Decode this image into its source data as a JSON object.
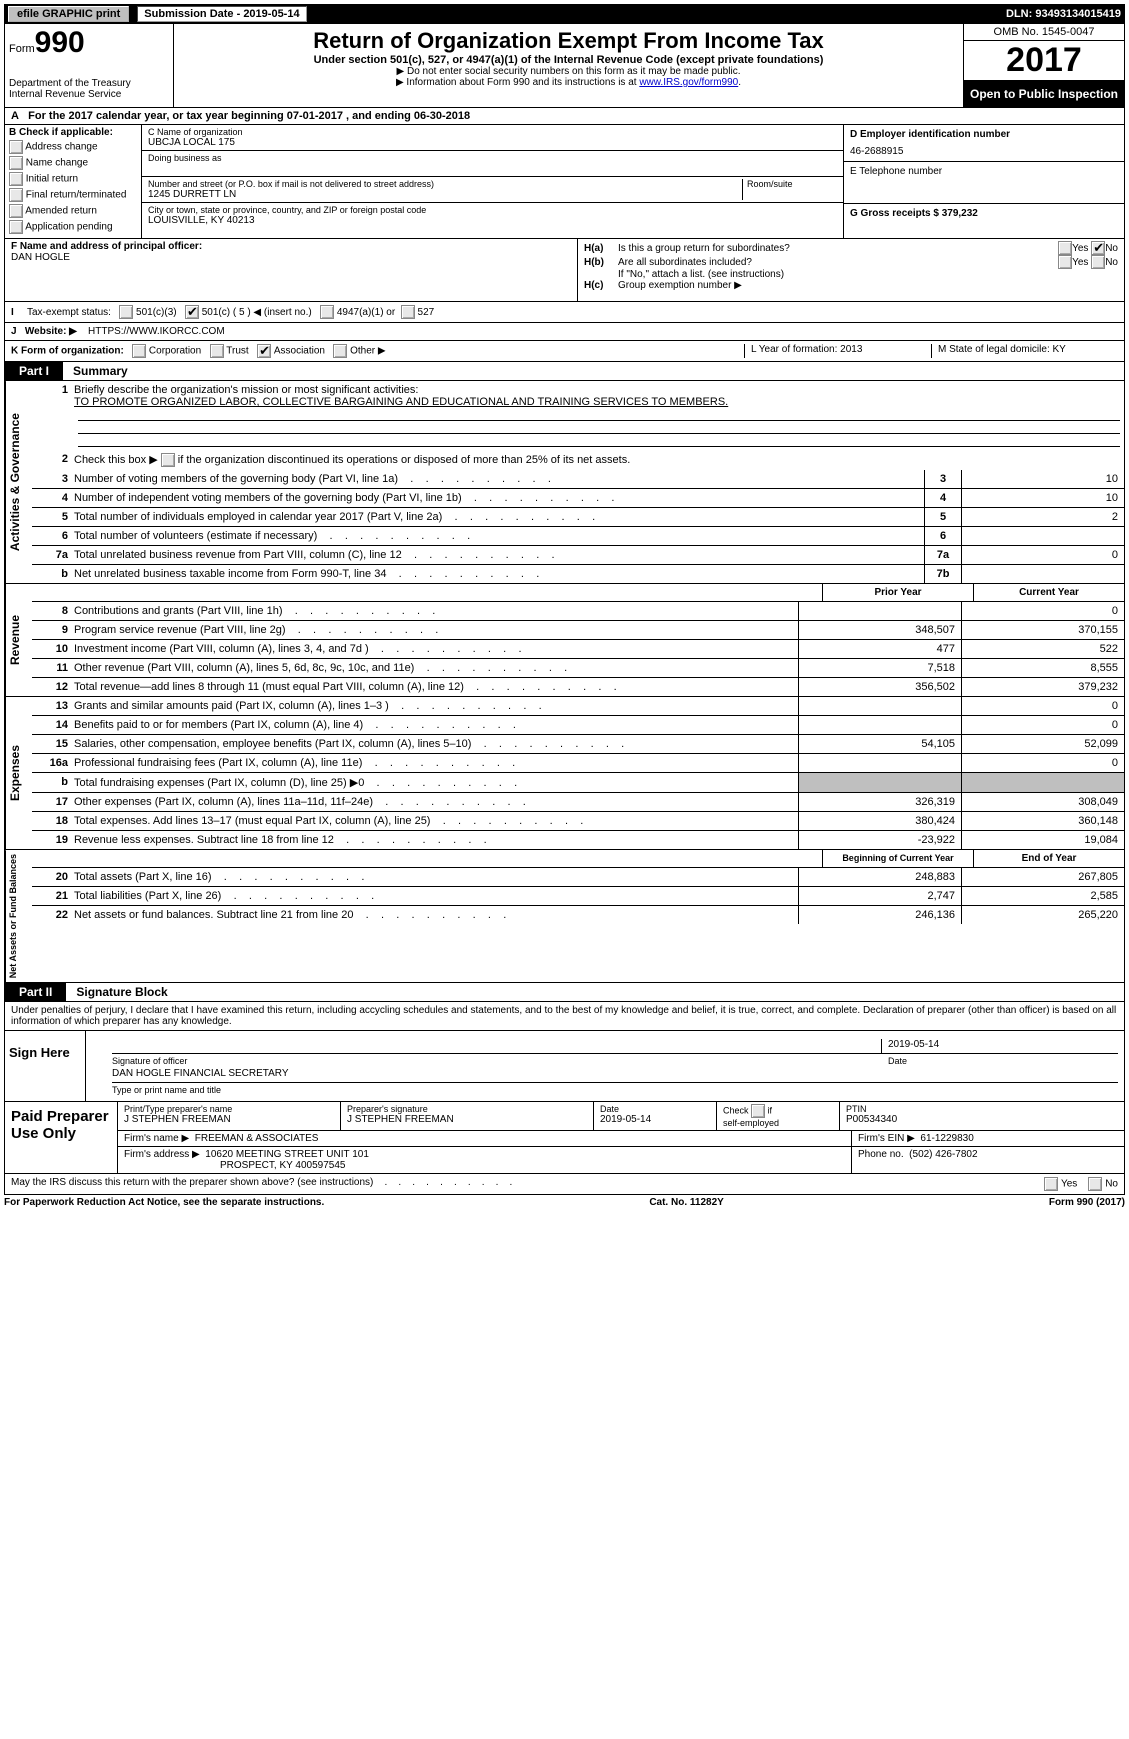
{
  "topbar": {
    "efile": "efile GRAPHIC print",
    "subm_label": "Submission Date - 2019-05-14",
    "dln": "DLN: 93493134015419"
  },
  "header": {
    "form_prefix": "Form",
    "form_num": "990",
    "dept": "Department of the Treasury",
    "irs": "Internal Revenue Service",
    "title": "Return of Organization Exempt From Income Tax",
    "subtitle": "Under section 501(c), 527, or 4947(a)(1) of the Internal Revenue Code (except private foundations)",
    "note1": "▶ Do not enter social security numbers on this form as it may be made public.",
    "note2_prefix": "▶ Information about Form 990 and its instructions is at ",
    "note2_link": "www.IRS.gov/form990",
    "omb": "OMB No. 1545-0047",
    "year": "2017",
    "inspection": "Open to Public Inspection"
  },
  "row_a": {
    "label_a": "A",
    "text": "For the 2017 calendar year, or tax year beginning 07-01-2017        , and ending 06-30-2018"
  },
  "box_b": {
    "title": "B  Check if applicable:",
    "items": [
      "Address change",
      "Name change",
      "Initial return",
      "Final return/terminated",
      "Amended return",
      "Application pending"
    ]
  },
  "box_c": {
    "name_label": "C Name of organization",
    "name": "UBCJA LOCAL 175",
    "dba_label": "Doing business as",
    "street_label": "Number and street (or P.O. box if mail is not delivered to street address)",
    "room_label": "Room/suite",
    "street": "1245 DURRETT LN",
    "city_label": "City or town, state or province, country, and ZIP or foreign postal code",
    "city": "LOUISVILLE, KY   40213"
  },
  "box_d": {
    "label": "D Employer identification number",
    "value": "46-2688915",
    "e_label": "E Telephone number",
    "g_label": "G Gross receipts $ 379,232"
  },
  "box_f": {
    "label": "F Name and address of principal officer:",
    "value": "DAN HOGLE"
  },
  "box_h": {
    "h_a_label": "H(a)",
    "h_a_text": "Is this a group return for subordinates?",
    "h_b_label": "H(b)",
    "h_b_text": "Are all subordinates included?",
    "h_b_note": "If \"No,\" attach a list. (see instructions)",
    "h_c_label": "H(c)",
    "h_c_text": "Group exemption number ▶",
    "yes": "Yes",
    "no": "No"
  },
  "row_i": {
    "label": "I",
    "text": "Tax-exempt status:",
    "opts": [
      "501(c)(3)",
      "501(c) ( 5 ) ◀ (insert no.)",
      "4947(a)(1) or",
      "527"
    ]
  },
  "row_j": {
    "label": "J",
    "text": "Website: ▶",
    "value": "HTTPS://WWW.IKORCC.COM"
  },
  "row_k": {
    "label": "K Form of organization:",
    "opts": [
      "Corporation",
      "Trust",
      "Association",
      "Other ▶"
    ]
  },
  "row_lm": {
    "l": "L Year of formation: 2013",
    "m": "M State of legal domicile: KY"
  },
  "part1": {
    "tag": "Part I",
    "title": "Summary",
    "q1_label": "1",
    "q1": "Briefly describe the organization's mission or most significant activities:",
    "q1_val": "TO PROMOTE ORGANIZED LABOR, COLLECTIVE BARGAINING AND EDUCATIONAL AND TRAINING SERVICES TO MEMBERS.",
    "q2_label": "2",
    "q2": "Check this box ▶        if the organization discontinued its operations or disposed of more than 25% of its net assets.",
    "rows_ag": [
      {
        "n": "3",
        "d": "Number of voting members of the governing body (Part VI, line 1a)",
        "k": "3",
        "v": "10"
      },
      {
        "n": "4",
        "d": "Number of independent voting members of the governing body (Part VI, line 1b)",
        "k": "4",
        "v": "10"
      },
      {
        "n": "5",
        "d": "Total number of individuals employed in calendar year 2017 (Part V, line 2a)",
        "k": "5",
        "v": "2"
      },
      {
        "n": "6",
        "d": "Total number of volunteers (estimate if necessary)",
        "k": "6",
        "v": ""
      },
      {
        "n": "7a",
        "d": "Total unrelated business revenue from Part VIII, column (C), line 12",
        "k": "7a",
        "v": "0"
      },
      {
        "n": "b",
        "d": "Net unrelated business taxable income from Form 990-T, line 34",
        "k": "7b",
        "v": ""
      }
    ],
    "hdr_prior": "Prior Year",
    "hdr_curr": "Current Year",
    "rev_rows": [
      {
        "n": "8",
        "d": "Contributions and grants (Part VIII, line 1h)",
        "p": "",
        "c": "0"
      },
      {
        "n": "9",
        "d": "Program service revenue (Part VIII, line 2g)",
        "p": "348,507",
        "c": "370,155"
      },
      {
        "n": "10",
        "d": "Investment income (Part VIII, column (A), lines 3, 4, and 7d )",
        "p": "477",
        "c": "522"
      },
      {
        "n": "11",
        "d": "Other revenue (Part VIII, column (A), lines 5, 6d, 8c, 9c, 10c, and 11e)",
        "p": "7,518",
        "c": "8,555"
      },
      {
        "n": "12",
        "d": "Total revenue—add lines 8 through 11 (must equal Part VIII, column (A), line 12)",
        "p": "356,502",
        "c": "379,232"
      }
    ],
    "exp_rows": [
      {
        "n": "13",
        "d": "Grants and similar amounts paid (Part IX, column (A), lines 1–3 )",
        "p": "",
        "c": "0"
      },
      {
        "n": "14",
        "d": "Benefits paid to or for members (Part IX, column (A), line 4)",
        "p": "",
        "c": "0"
      },
      {
        "n": "15",
        "d": "Salaries, other compensation, employee benefits (Part IX, column (A), lines 5–10)",
        "p": "54,105",
        "c": "52,099"
      },
      {
        "n": "16a",
        "d": "Professional fundraising fees (Part IX, column (A), line 11e)",
        "p": "",
        "c": "0"
      },
      {
        "n": "b",
        "d": "Total fundraising expenses (Part IX, column (D), line 25) ▶0",
        "p": "SHADE",
        "c": "SHADE"
      },
      {
        "n": "17",
        "d": "Other expenses (Part IX, column (A), lines 11a–11d, 11f–24e)",
        "p": "326,319",
        "c": "308,049"
      },
      {
        "n": "18",
        "d": "Total expenses. Add lines 13–17 (must equal Part IX, column (A), line 25)",
        "p": "380,424",
        "c": "360,148"
      },
      {
        "n": "19",
        "d": "Revenue less expenses. Subtract line 18 from line 12",
        "p": "-23,922",
        "c": "19,084"
      }
    ],
    "hdr_beg": "Beginning of Current Year",
    "hdr_end": "End of Year",
    "na_rows": [
      {
        "n": "20",
        "d": "Total assets (Part X, line 16)",
        "p": "248,883",
        "c": "267,805"
      },
      {
        "n": "21",
        "d": "Total liabilities (Part X, line 26)",
        "p": "2,747",
        "c": "2,585"
      },
      {
        "n": "22",
        "d": "Net assets or fund balances. Subtract line 21 from line 20",
        "p": "246,136",
        "c": "265,220"
      }
    ],
    "vlabels": {
      "ag": "Activities & Governance",
      "rev": "Revenue",
      "exp": "Expenses",
      "na": "Net Assets or Fund Balances"
    }
  },
  "part2": {
    "tag": "Part II",
    "title": "Signature Block",
    "decl": "Under penalties of perjury, I declare that I have examined this return, including accycling schedules and statements, and to the best of my knowledge and belief, it is true, correct, and complete. Declaration of preparer (other than officer) is based on all information of which preparer has any knowledge.",
    "sign_here": "Sign Here",
    "sig_officer": "Signature of officer",
    "sig_date": "2019-05-14",
    "date_lbl": "Date",
    "printed_name": "DAN HOGLE FINANCIAL SECRETARY",
    "printed_lbl": "Type or print name and title"
  },
  "paid": {
    "label": "Paid Preparer Use Only",
    "r1": {
      "c1_lbl": "Print/Type preparer's name",
      "c1": "J STEPHEN FREEMAN",
      "c2_lbl": "Preparer's signature",
      "c2": "J STEPHEN FREEMAN",
      "c3_lbl": "Date",
      "c3": "2019-05-14",
      "c4_lbl": "Check        if self-employed",
      "c5_lbl": "PTIN",
      "c5": "P00534340"
    },
    "r2": {
      "lbl": "Firm's name      ▶",
      "val": "FREEMAN & ASSOCIATES",
      "ein_lbl": "Firm's EIN ▶",
      "ein": "61-1229830"
    },
    "r3": {
      "lbl": "Firm's address ▶",
      "val": "10620 MEETING STREET UNIT 101",
      "ph_lbl": "Phone no.",
      "ph": "(502) 426-7802"
    },
    "r3b": "PROSPECT, KY  400597545"
  },
  "footer": {
    "discuss": "May the IRS discuss this return with the preparer shown above? (see instructions)",
    "yes": "Yes",
    "no": "No",
    "pra": "For Paperwork Reduction Act Notice, see the separate instructions.",
    "cat": "Cat. No. 11282Y",
    "form": "Form 990 (2017)"
  }
}
